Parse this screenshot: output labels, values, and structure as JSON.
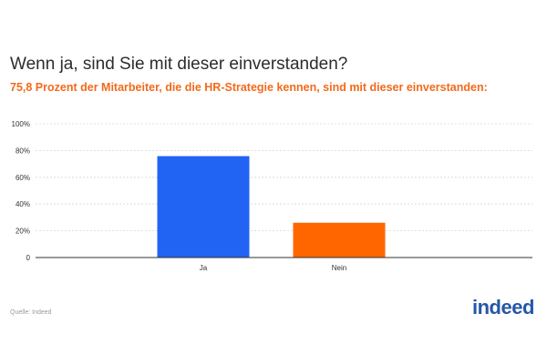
{
  "header": {
    "title": "Wenn ja, sind Sie mit dieser einverstanden?",
    "subtitle": "75,8 Prozent der Mitarbeiter, die die HR-Strategie kennen, sind mit dieser einverstanden:"
  },
  "footer": {
    "source": "Quelle: Indeed",
    "logo_text": "indeed"
  },
  "colors": {
    "bar_ja": "#2164f3",
    "bar_nein": "#ff6600",
    "grid": "#d6d6d6",
    "axis": "#333333",
    "subtitle": "#f26a1b",
    "logo": "#2557a7"
  },
  "chart_data": {
    "type": "bar",
    "categories": [
      "Ja",
      "Nein"
    ],
    "values": [
      75.8,
      26
    ],
    "colors": [
      "#2164f3",
      "#ff6600"
    ],
    "ylim": [
      0,
      100
    ],
    "yticks": [
      "0",
      "20%",
      "40%",
      "60%",
      "80%",
      "100%"
    ],
    "ytick_values": [
      0,
      20,
      40,
      60,
      80,
      100
    ],
    "grid": true,
    "xlabel": "",
    "ylabel": ""
  }
}
